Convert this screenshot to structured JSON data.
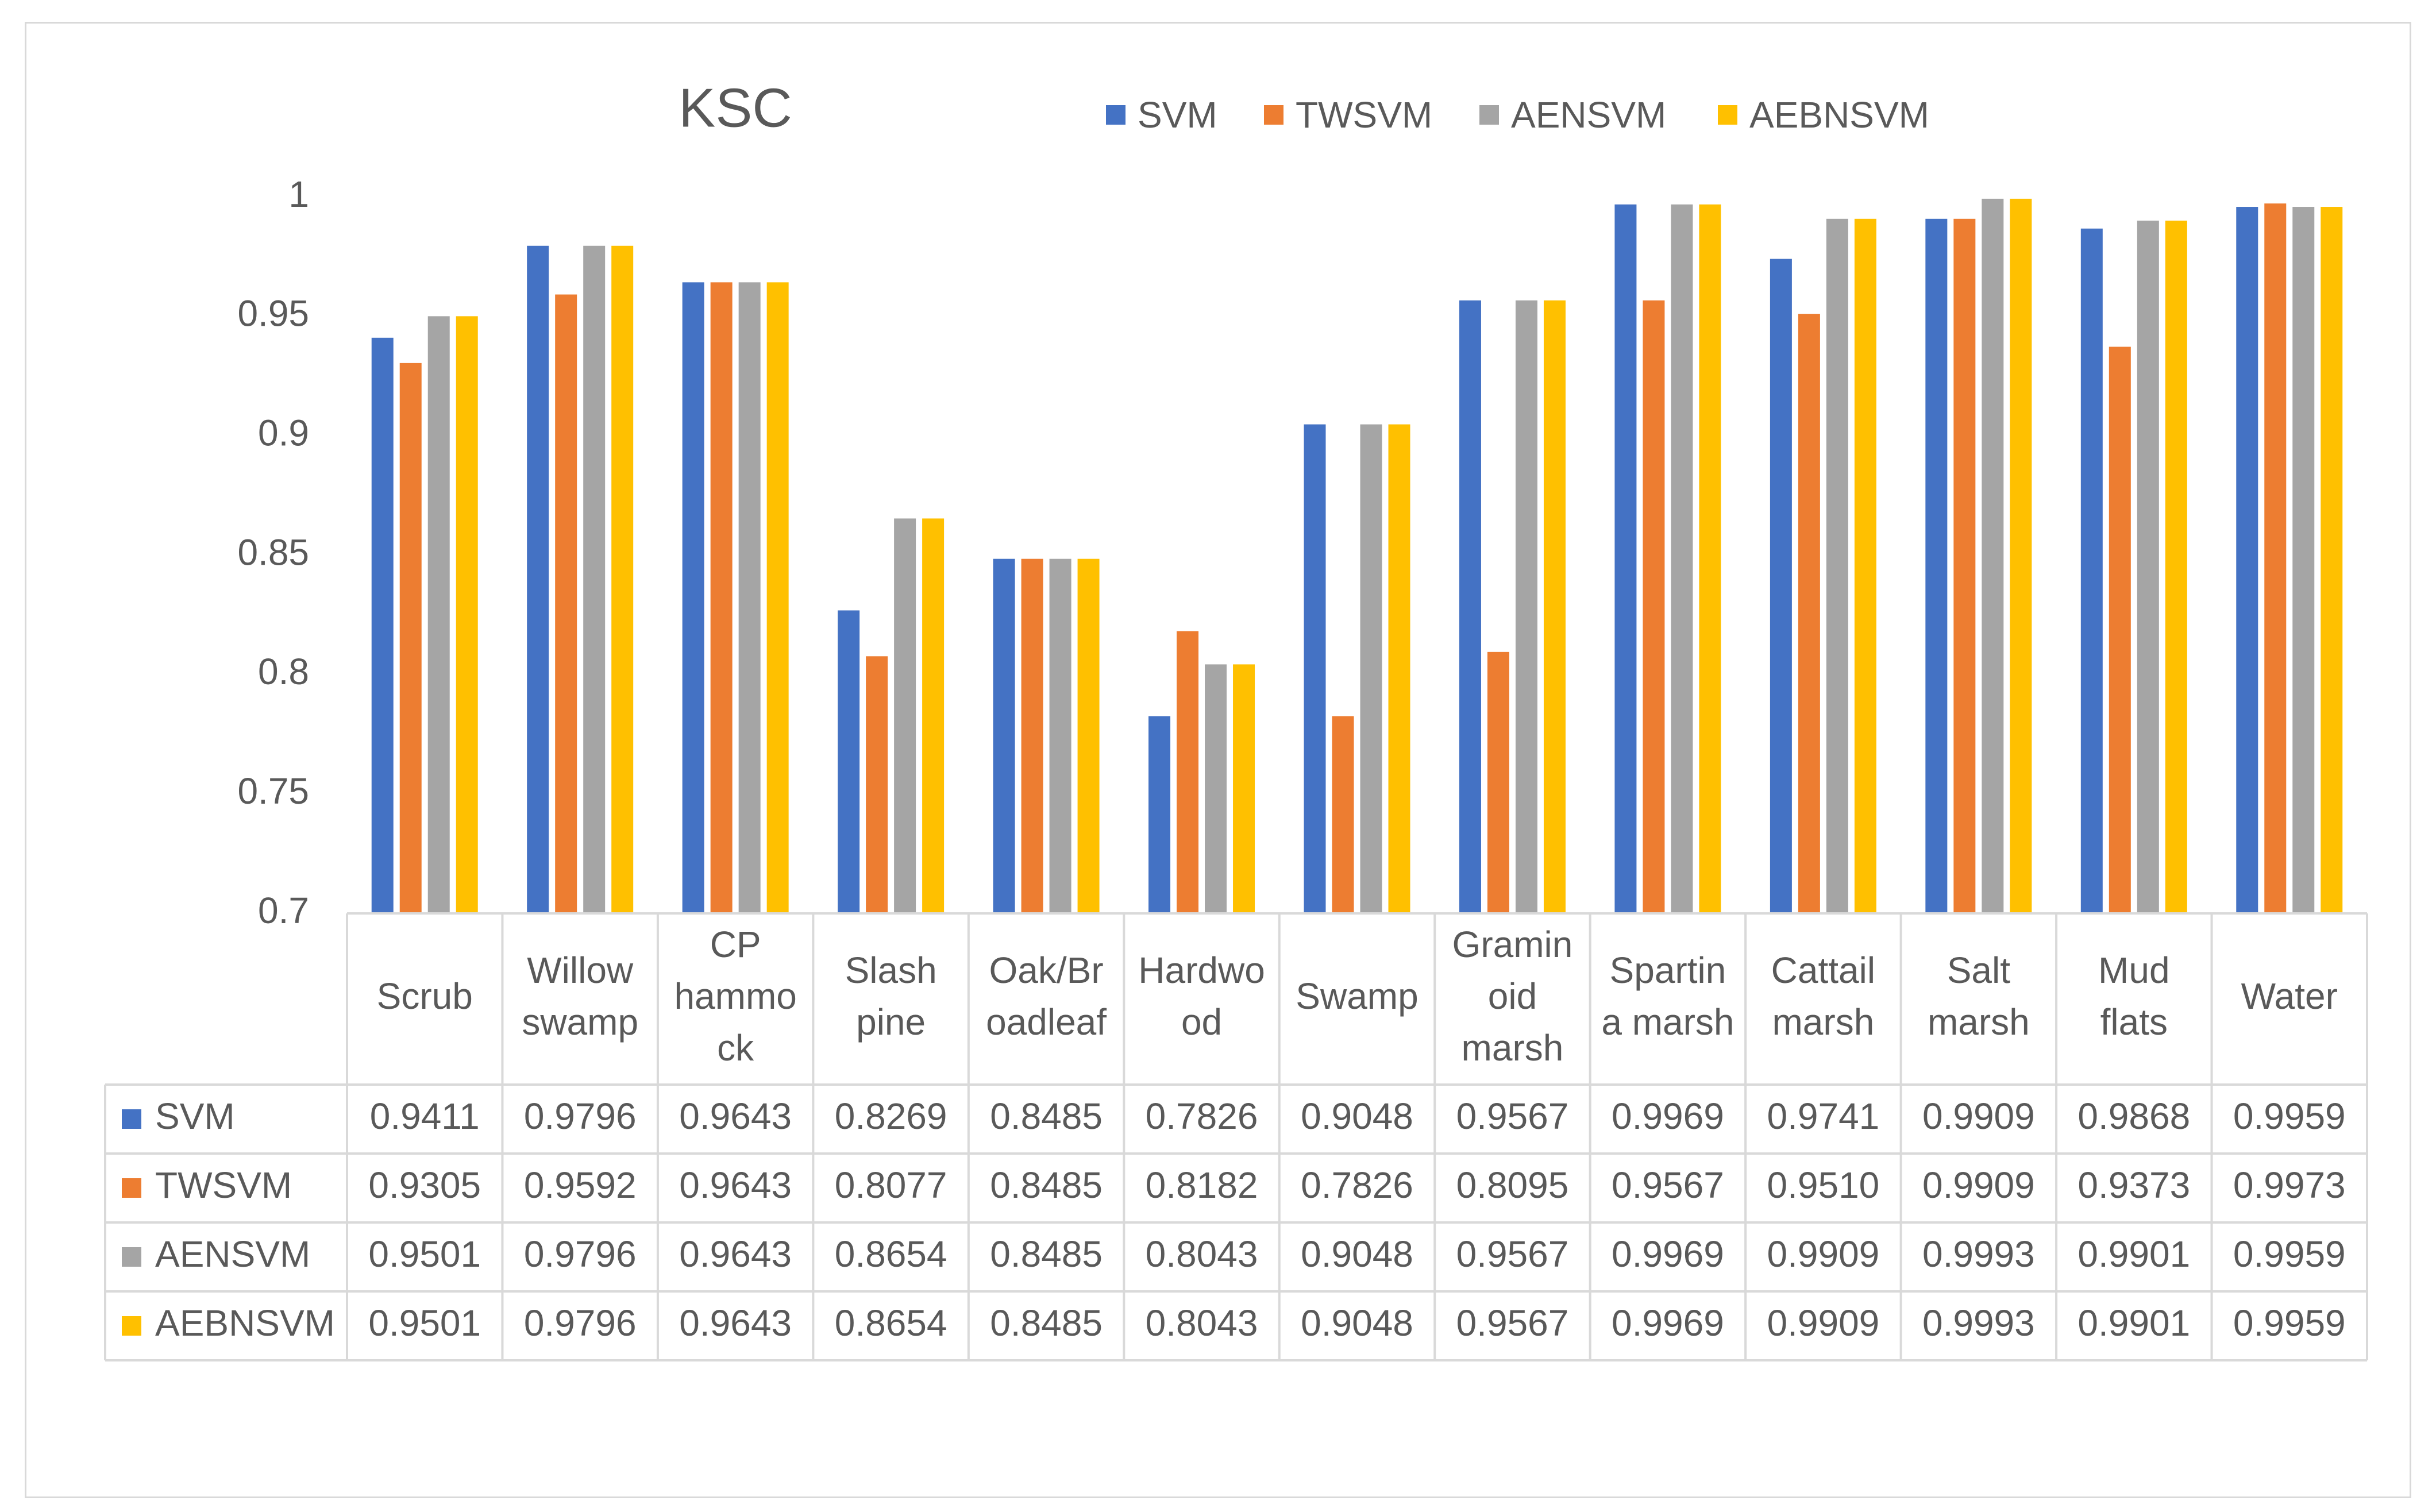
{
  "chart_data": {
    "type": "bar",
    "title": "KSC",
    "xlabel": "",
    "ylabel": "",
    "ylim": [
      0.7,
      1
    ],
    "yticks": [
      "0.7",
      "0.75",
      "0.8",
      "0.85",
      "0.9",
      "0.95",
      "1"
    ],
    "grid": false,
    "legend": "top-right",
    "categories": [
      [
        "Scrub"
      ],
      [
        "Willow",
        "swamp"
      ],
      [
        "CP",
        "hammo",
        "ck"
      ],
      [
        "Slash",
        "pine"
      ],
      [
        "Oak/Br",
        "oadleaf"
      ],
      [
        "Hardwo",
        "od"
      ],
      [
        "Swamp"
      ],
      [
        "Gramin",
        "oid",
        "marsh"
      ],
      [
        "Spartin",
        "a marsh"
      ],
      [
        "Cattail",
        "marsh"
      ],
      [
        "Salt",
        "marsh"
      ],
      [
        "Mud",
        "flats"
      ],
      [
        "Water"
      ]
    ],
    "series": [
      {
        "name": "SVM",
        "color": "#4472C4",
        "values": [
          0.9411,
          0.9796,
          0.9643,
          0.8269,
          0.8485,
          0.7826,
          0.9048,
          0.9567,
          0.9969,
          0.9741,
          0.9909,
          0.9868,
          0.9959
        ],
        "labels": [
          "0.9411",
          "0.9796",
          "0.9643",
          "0.8269",
          "0.8485",
          "0.7826",
          "0.9048",
          "0.9567",
          "0.9969",
          "0.9741",
          "0.9909",
          "0.9868",
          "0.9959"
        ]
      },
      {
        "name": "TWSVM",
        "color": "#ED7D31",
        "values": [
          0.9305,
          0.9592,
          0.9643,
          0.8077,
          0.8485,
          0.8182,
          0.7826,
          0.8095,
          0.9567,
          0.951,
          0.9909,
          0.9373,
          0.9973
        ],
        "labels": [
          "0.9305",
          "0.9592",
          "0.9643",
          "0.8077",
          "0.8485",
          "0.8182",
          "0.7826",
          "0.8095",
          "0.9567",
          "0.9510",
          "0.9909",
          "0.9373",
          "0.9973"
        ]
      },
      {
        "name": "AENSVM",
        "color": "#A5A5A5",
        "values": [
          0.9501,
          0.9796,
          0.9643,
          0.8654,
          0.8485,
          0.8043,
          0.9048,
          0.9567,
          0.9969,
          0.9909,
          0.9993,
          0.9901,
          0.9959
        ],
        "labels": [
          "0.9501",
          "0.9796",
          "0.9643",
          "0.8654",
          "0.8485",
          "0.8043",
          "0.9048",
          "0.9567",
          "0.9969",
          "0.9909",
          "0.9993",
          "0.9901",
          "0.9959"
        ]
      },
      {
        "name": "AEBNSVM",
        "color": "#FFC000",
        "values": [
          0.9501,
          0.9796,
          0.9643,
          0.8654,
          0.8485,
          0.8043,
          0.9048,
          0.9567,
          0.9969,
          0.9909,
          0.9993,
          0.9901,
          0.9959
        ],
        "labels": [
          "0.9501",
          "0.9796",
          "0.9643",
          "0.8654",
          "0.8485",
          "0.8043",
          "0.9048",
          "0.9567",
          "0.9969",
          "0.9909",
          "0.9993",
          "0.9901",
          "0.9959"
        ]
      }
    ]
  }
}
